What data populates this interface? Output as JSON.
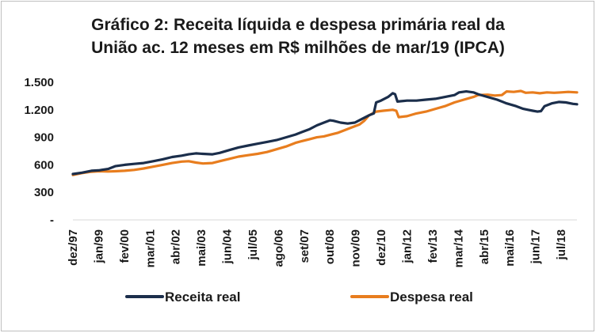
{
  "chart_data": {
    "type": "line",
    "title_line1": "Gráfico 2: Receita líquida e despesa primária real da",
    "title_line2": "União ac. 12 meses em R$ milhões de mar/19 (IPCA)",
    "xlabel": "",
    "ylabel": "",
    "ylim": [
      0,
      1500
    ],
    "y_ticks": [
      {
        "value": 0,
        "label": "-"
      },
      {
        "value": 300,
        "label": "300"
      },
      {
        "value": 600,
        "label": "600"
      },
      {
        "value": 900,
        "label": "900"
      },
      {
        "value": 1200,
        "label": "1.200"
      },
      {
        "value": 1500,
        "label": "1.500"
      }
    ],
    "x_range": [
      1997.917,
      2019.167
    ],
    "x_ticks": [
      {
        "label": "dez/97",
        "x": 1997.917
      },
      {
        "label": "jan/99",
        "x": 1999.0
      },
      {
        "label": "fev/00",
        "x": 2000.083
      },
      {
        "label": "mar/01",
        "x": 2001.167
      },
      {
        "label": "abr/02",
        "x": 2002.25
      },
      {
        "label": "mai/03",
        "x": 2003.333
      },
      {
        "label": "jun/04",
        "x": 2004.417
      },
      {
        "label": "jul/05",
        "x": 2005.5
      },
      {
        "label": "ago/06",
        "x": 2006.583
      },
      {
        "label": "set/07",
        "x": 2007.667
      },
      {
        "label": "out/08",
        "x": 2008.75
      },
      {
        "label": "nov/09",
        "x": 2009.833
      },
      {
        "label": "dez/10",
        "x": 2010.917
      },
      {
        "label": "jan/12",
        "x": 2012.0
      },
      {
        "label": "fev/13",
        "x": 2013.083
      },
      {
        "label": "mar/14",
        "x": 2014.167
      },
      {
        "label": "abr/15",
        "x": 2015.25
      },
      {
        "label": "mai/16",
        "x": 2016.333
      },
      {
        "label": "jun/17",
        "x": 2017.417
      },
      {
        "label": "jul/18",
        "x": 2018.5
      }
    ],
    "legend_position": "bottom",
    "grid": false,
    "series": [
      {
        "name": "Receita real",
        "color": "#1b2e4b",
        "points": [
          [
            1997.917,
            500
          ],
          [
            1998.3,
            515
          ],
          [
            1998.7,
            535
          ],
          [
            1999.0,
            540
          ],
          [
            1999.4,
            555
          ],
          [
            1999.7,
            585
          ],
          [
            2000.1,
            600
          ],
          [
            2000.5,
            610
          ],
          [
            2000.9,
            620
          ],
          [
            2001.3,
            640
          ],
          [
            2001.7,
            660
          ],
          [
            2002.1,
            685
          ],
          [
            2002.5,
            700
          ],
          [
            2002.8,
            715
          ],
          [
            2003.1,
            725
          ],
          [
            2003.4,
            720
          ],
          [
            2003.8,
            715
          ],
          [
            2004.1,
            730
          ],
          [
            2004.5,
            760
          ],
          [
            2004.9,
            790
          ],
          [
            2005.3,
            810
          ],
          [
            2005.7,
            830
          ],
          [
            2006.1,
            850
          ],
          [
            2006.5,
            870
          ],
          [
            2006.9,
            900
          ],
          [
            2007.3,
            930
          ],
          [
            2007.6,
            960
          ],
          [
            2007.9,
            990
          ],
          [
            2008.2,
            1030
          ],
          [
            2008.5,
            1060
          ],
          [
            2008.75,
            1085
          ],
          [
            2008.9,
            1080
          ],
          [
            2009.2,
            1060
          ],
          [
            2009.5,
            1050
          ],
          [
            2009.8,
            1060
          ],
          [
            2010.1,
            1100
          ],
          [
            2010.4,
            1140
          ],
          [
            2010.6,
            1160
          ],
          [
            2010.7,
            1280
          ],
          [
            2010.9,
            1300
          ],
          [
            2011.2,
            1340
          ],
          [
            2011.4,
            1380
          ],
          [
            2011.5,
            1370
          ],
          [
            2011.6,
            1290
          ],
          [
            2012.0,
            1300
          ],
          [
            2012.4,
            1300
          ],
          [
            2012.8,
            1310
          ],
          [
            2013.2,
            1320
          ],
          [
            2013.6,
            1340
          ],
          [
            2014.0,
            1360
          ],
          [
            2014.2,
            1390
          ],
          [
            2014.5,
            1400
          ],
          [
            2014.8,
            1390
          ],
          [
            2015.0,
            1370
          ],
          [
            2015.4,
            1340
          ],
          [
            2015.8,
            1310
          ],
          [
            2016.2,
            1270
          ],
          [
            2016.6,
            1240
          ],
          [
            2016.9,
            1210
          ],
          [
            2017.1,
            1200
          ],
          [
            2017.3,
            1190
          ],
          [
            2017.5,
            1180
          ],
          [
            2017.65,
            1185
          ],
          [
            2017.8,
            1240
          ],
          [
            2018.1,
            1270
          ],
          [
            2018.4,
            1285
          ],
          [
            2018.7,
            1280
          ],
          [
            2019.0,
            1265
          ],
          [
            2019.167,
            1260
          ]
        ]
      },
      {
        "name": "Despesa real",
        "color": "#e87d1e",
        "points": [
          [
            1997.917,
            490
          ],
          [
            1998.3,
            510
          ],
          [
            1998.7,
            525
          ],
          [
            1999.0,
            530
          ],
          [
            1999.4,
            528
          ],
          [
            1999.7,
            530
          ],
          [
            2000.1,
            535
          ],
          [
            2000.5,
            545
          ],
          [
            2000.9,
            560
          ],
          [
            2001.3,
            580
          ],
          [
            2001.7,
            600
          ],
          [
            2002.1,
            620
          ],
          [
            2002.5,
            635
          ],
          [
            2002.8,
            640
          ],
          [
            2003.1,
            625
          ],
          [
            2003.4,
            615
          ],
          [
            2003.8,
            620
          ],
          [
            2004.1,
            640
          ],
          [
            2004.5,
            665
          ],
          [
            2004.9,
            690
          ],
          [
            2005.3,
            705
          ],
          [
            2005.7,
            720
          ],
          [
            2006.1,
            740
          ],
          [
            2006.5,
            770
          ],
          [
            2006.9,
            800
          ],
          [
            2007.3,
            840
          ],
          [
            2007.6,
            860
          ],
          [
            2007.9,
            880
          ],
          [
            2008.2,
            900
          ],
          [
            2008.5,
            910
          ],
          [
            2008.8,
            930
          ],
          [
            2009.1,
            950
          ],
          [
            2009.4,
            980
          ],
          [
            2009.7,
            1010
          ],
          [
            2010.0,
            1040
          ],
          [
            2010.2,
            1080
          ],
          [
            2010.4,
            1140
          ],
          [
            2010.7,
            1180
          ],
          [
            2011.0,
            1190
          ],
          [
            2011.4,
            1200
          ],
          [
            2011.55,
            1190
          ],
          [
            2011.65,
            1120
          ],
          [
            2012.0,
            1130
          ],
          [
            2012.4,
            1160
          ],
          [
            2012.8,
            1180
          ],
          [
            2013.2,
            1210
          ],
          [
            2013.6,
            1240
          ],
          [
            2014.0,
            1280
          ],
          [
            2014.4,
            1310
          ],
          [
            2014.8,
            1340
          ],
          [
            2015.0,
            1360
          ],
          [
            2015.4,
            1365
          ],
          [
            2015.7,
            1355
          ],
          [
            2016.0,
            1360
          ],
          [
            2016.2,
            1400
          ],
          [
            2016.5,
            1395
          ],
          [
            2016.8,
            1405
          ],
          [
            2017.0,
            1385
          ],
          [
            2017.3,
            1390
          ],
          [
            2017.6,
            1380
          ],
          [
            2017.9,
            1390
          ],
          [
            2018.2,
            1385
          ],
          [
            2018.5,
            1390
          ],
          [
            2018.8,
            1395
          ],
          [
            2019.167,
            1390
          ]
        ]
      }
    ]
  }
}
